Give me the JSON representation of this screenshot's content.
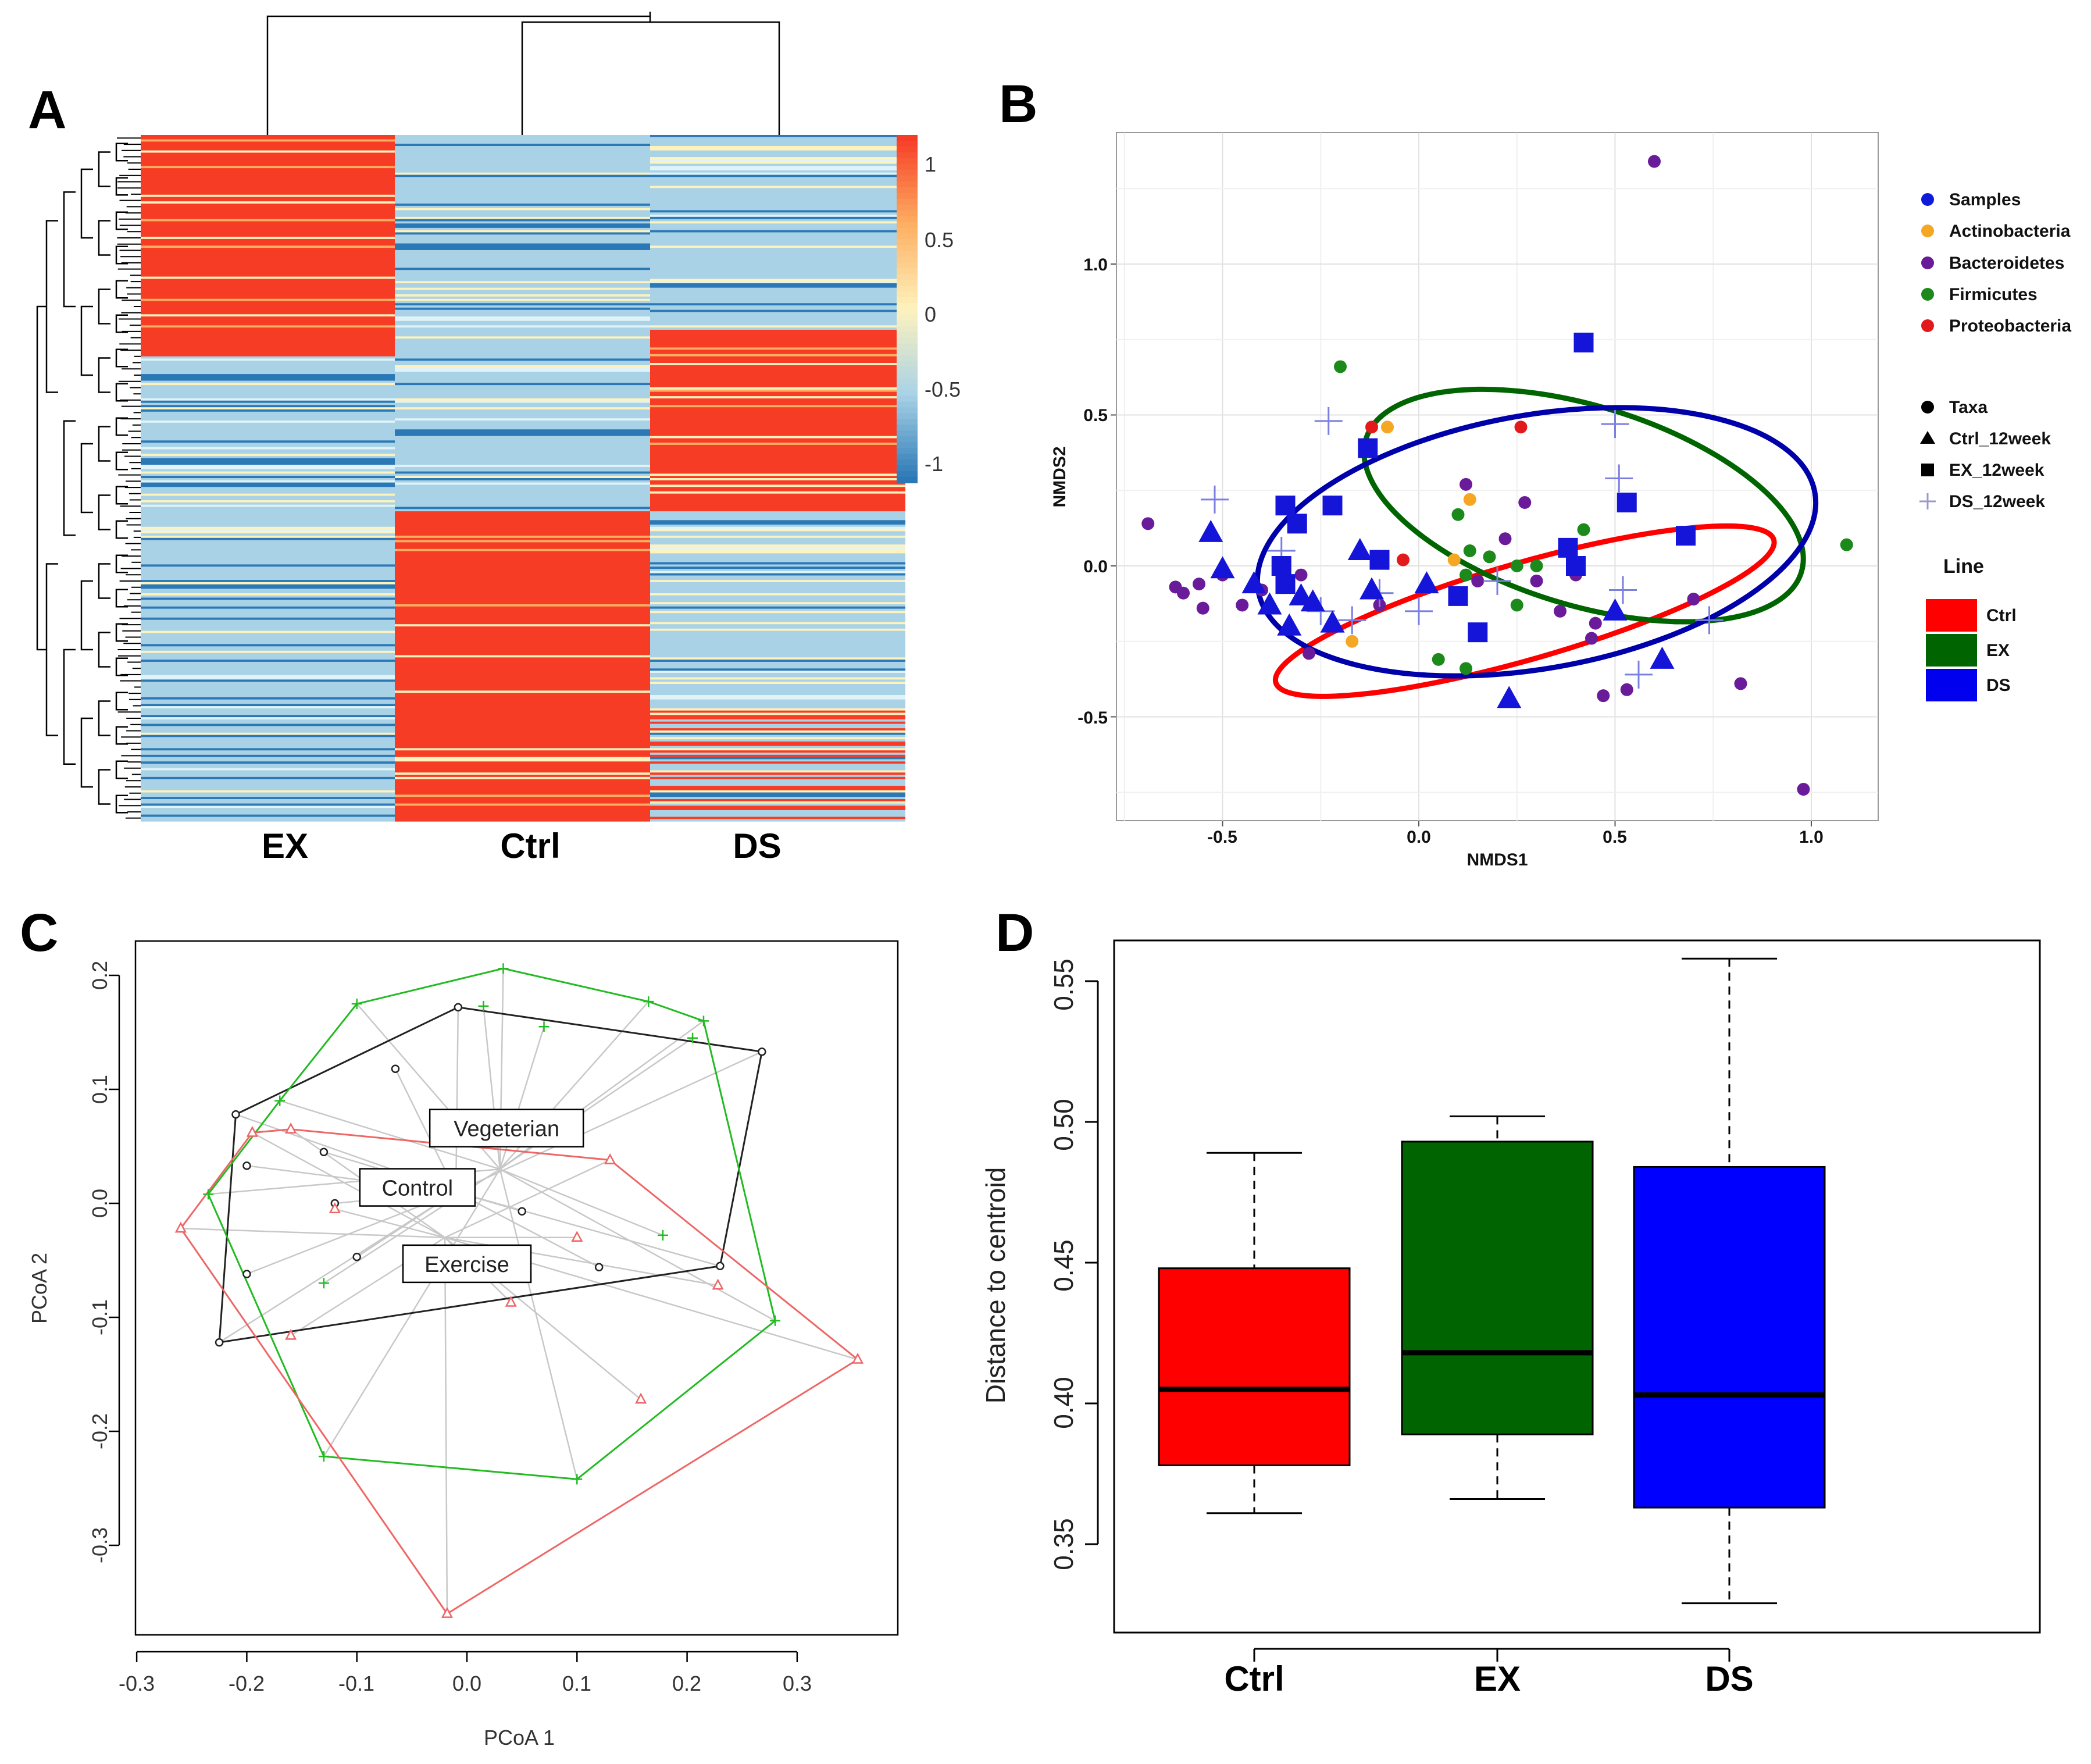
{
  "panel_labels": [
    "A",
    "B",
    "C",
    "D"
  ],
  "chart_data": [
    {
      "panel": "A",
      "type": "heatmap",
      "title": "",
      "columns": [
        "EX",
        "Ctrl",
        "DS"
      ],
      "colorbar_ticks": [
        "1",
        "0.5",
        "0",
        "-0.5",
        "-1"
      ],
      "colors": {
        "high": "#f73c26",
        "mid": "#fef2bd",
        "low": "#2a78b5",
        "light": "#a9d2e6"
      },
      "blocks": [
        {
          "rows": 88,
          "pattern": [
            "high",
            "light",
            "light"
          ]
        },
        {
          "rows": 12,
          "pattern": [
            "high",
            "light",
            "high"
          ]
        },
        {
          "rows": 70,
          "pattern": [
            "light",
            "light",
            "high"
          ]
        },
        {
          "rows": 90,
          "pattern": [
            "light",
            "high",
            "light"
          ]
        },
        {
          "rows": 50,
          "pattern": [
            "light",
            "high",
            "mixed"
          ]
        }
      ]
    },
    {
      "panel": "B",
      "type": "scatter",
      "xlabel": "NMDS1",
      "ylabel": "NMDS2",
      "xlim": [
        -0.75,
        1.2
      ],
      "ylim": [
        -0.8,
        1.4
      ],
      "xticks": [
        "-0.5",
        "0.0",
        "0.5",
        "1.0"
      ],
      "yticks": [
        "-0.5",
        "0.0",
        "0.5",
        "1.0"
      ],
      "legend_color_title": "",
      "legend_color": [
        "Samples",
        "Actinobacteria",
        "Bacteroidetes",
        "Firmicutes",
        "Proteobacteria"
      ],
      "legend_colors": [
        "#0f1bd8",
        "#f5a623",
        "#6a1b9a",
        "#1b8a1b",
        "#e31a1c"
      ],
      "legend_shape": [
        "Taxa",
        "Ctrl_12week",
        "EX_12week",
        "DS_12week"
      ],
      "legend_line_title": "Line",
      "legend_line": [
        "Ctrl",
        "EX",
        "DS"
      ],
      "legend_line_colors": [
        "#ff0000",
        "#006400",
        "#0000ee"
      ],
      "ellipses": [
        {
          "group": "Ctrl",
          "cx": 0.27,
          "cy": -0.15,
          "rx": 0.66,
          "ry": 0.16,
          "angle_deg": -16
        },
        {
          "group": "EX",
          "cx": 0.42,
          "cy": 0.2,
          "rx": 0.58,
          "ry": 0.33,
          "angle_deg": 17
        },
        {
          "group": "DS",
          "cx": 0.3,
          "cy": 0.08,
          "rx": 0.72,
          "ry": 0.42,
          "angle_deg": -10
        }
      ],
      "taxa": {
        "Bacteroidetes": [
          [
            0.6,
            1.34
          ],
          [
            -0.69,
            0.14
          ],
          [
            -0.62,
            -0.07
          ],
          [
            -0.6,
            -0.09
          ],
          [
            -0.56,
            -0.06
          ],
          [
            -0.5,
            -0.03
          ],
          [
            -0.55,
            -0.14
          ],
          [
            -0.45,
            -0.13
          ],
          [
            -0.4,
            -0.08
          ],
          [
            -0.3,
            -0.03
          ],
          [
            -0.1,
            -0.13
          ],
          [
            0.12,
            0.27
          ],
          [
            0.22,
            0.09
          ],
          [
            0.27,
            0.21
          ],
          [
            0.15,
            -0.05
          ],
          [
            0.4,
            -0.03
          ],
          [
            0.36,
            -0.15
          ],
          [
            0.45,
            -0.19
          ],
          [
            0.44,
            -0.24
          ],
          [
            0.47,
            -0.43
          ],
          [
            0.53,
            -0.41
          ],
          [
            0.7,
            -0.11
          ],
          [
            0.82,
            -0.39
          ],
          [
            0.98,
            -0.74
          ],
          [
            -0.28,
            -0.29
          ],
          [
            0.3,
            -0.05
          ]
        ],
        "Firmicutes": [
          [
            -0.2,
            0.66
          ],
          [
            0.1,
            0.17
          ],
          [
            0.13,
            0.05
          ],
          [
            0.12,
            -0.03
          ],
          [
            0.18,
            0.03
          ],
          [
            0.25,
            -0.13
          ],
          [
            0.25,
            0.0
          ],
          [
            0.12,
            -0.34
          ],
          [
            0.05,
            -0.31
          ],
          [
            0.42,
            0.12
          ],
          [
            1.09,
            0.07
          ],
          [
            0.3,
            0.0
          ]
        ],
        "Actinobacteria": [
          [
            -0.08,
            0.46
          ],
          [
            0.13,
            0.22
          ],
          [
            0.09,
            0.02
          ],
          [
            -0.17,
            -0.25
          ]
        ],
        "Proteobacteria": [
          [
            -0.12,
            0.46
          ],
          [
            0.26,
            0.46
          ],
          [
            -0.04,
            0.02
          ]
        ]
      },
      "samples": {
        "Ctrl_12week": [
          [
            -0.53,
            0.11
          ],
          [
            -0.5,
            -0.01
          ],
          [
            -0.42,
            -0.06
          ],
          [
            -0.38,
            -0.13
          ],
          [
            -0.3,
            -0.1
          ],
          [
            -0.27,
            -0.12
          ],
          [
            -0.33,
            -0.2
          ],
          [
            -0.22,
            -0.19
          ],
          [
            -0.15,
            0.05
          ],
          [
            -0.12,
            -0.08
          ],
          [
            0.02,
            -0.06
          ],
          [
            0.23,
            -0.44
          ],
          [
            0.5,
            -0.15
          ],
          [
            0.62,
            -0.31
          ]
        ],
        "EX_12week": [
          [
            -0.34,
            0.2
          ],
          [
            -0.22,
            0.2
          ],
          [
            -0.13,
            0.39
          ],
          [
            -0.35,
            0.0
          ],
          [
            -0.34,
            -0.06
          ],
          [
            -0.31,
            0.14
          ],
          [
            -0.1,
            0.02
          ],
          [
            0.1,
            -0.1
          ],
          [
            0.15,
            -0.22
          ],
          [
            0.38,
            0.06
          ],
          [
            0.42,
            0.74
          ],
          [
            0.53,
            0.21
          ],
          [
            0.68,
            0.1
          ],
          [
            0.4,
            0.0
          ]
        ],
        "DS_12week": [
          [
            -0.52,
            0.22
          ],
          [
            -0.23,
            0.48
          ],
          [
            -0.25,
            -0.15
          ],
          [
            -0.17,
            -0.18
          ],
          [
            -0.1,
            -0.09
          ],
          [
            0.0,
            -0.15
          ],
          [
            0.2,
            -0.05
          ],
          [
            0.5,
            0.47
          ],
          [
            0.51,
            0.29
          ],
          [
            0.52,
            -0.08
          ],
          [
            0.56,
            -0.36
          ],
          [
            0.74,
            -0.18
          ],
          [
            -0.35,
            0.05
          ]
        ]
      }
    },
    {
      "panel": "C",
      "type": "scatter",
      "xlabel": "PCoA 1",
      "ylabel": "PCoA 2",
      "xlim": [
        -0.3,
        0.38
      ],
      "ylim": [
        -0.38,
        0.25
      ],
      "xticks": [
        "-0.3",
        "-0.2",
        "-0.1",
        "0.0",
        "0.1",
        "0.2",
        "0.3"
      ],
      "yticks": [
        "-0.3",
        "-0.2",
        "-0.1",
        "0.0",
        "0.1",
        "0.2"
      ],
      "group_labels": [
        {
          "text": "Vegeterian",
          "x": 0.036,
          "y": 0.066
        },
        {
          "text": "Control",
          "x": -0.045,
          "y": 0.014
        },
        {
          "text": "Exercise",
          "x": 0.0,
          "y": -0.053
        }
      ],
      "groups": [
        {
          "name": "Control",
          "color": "#222222",
          "marker": "circle",
          "centroid": [
            -0.01,
            0.01
          ],
          "points": [
            [
              -0.21,
              0.078
            ],
            [
              -0.2,
              0.033
            ],
            [
              -0.13,
              0.045
            ],
            [
              -0.12,
              0.0
            ],
            [
              -0.1,
              -0.047
            ],
            [
              -0.2,
              -0.062
            ],
            [
              -0.225,
              -0.122
            ],
            [
              -0.065,
              0.118
            ],
            [
              -0.008,
              0.172
            ],
            [
              0.05,
              -0.007
            ],
            [
              0.12,
              -0.056
            ],
            [
              0.23,
              -0.055
            ],
            [
              0.268,
              0.133
            ]
          ]
        },
        {
          "name": "Vegeterian",
          "color": "#22bb22",
          "marker": "plus",
          "centroid": [
            0.03,
            0.03
          ],
          "points": [
            [
              -0.235,
              0.008
            ],
            [
              -0.17,
              0.09
            ],
            [
              -0.1,
              0.175
            ],
            [
              0.015,
              0.173
            ],
            [
              0.033,
              0.206
            ],
            [
              0.07,
              0.155
            ],
            [
              0.165,
              0.177
            ],
            [
              0.215,
              0.16
            ],
            [
              0.205,
              0.145
            ],
            [
              0.178,
              -0.028
            ],
            [
              0.28,
              -0.103
            ],
            [
              0.1,
              -0.242
            ],
            [
              -0.13,
              -0.222
            ],
            [
              -0.13,
              -0.07
            ]
          ]
        },
        {
          "name": "Exercise",
          "color": "#ee6666",
          "marker": "triangle",
          "centroid": [
            -0.02,
            -0.03
          ],
          "points": [
            [
              -0.26,
              -0.022
            ],
            [
              -0.195,
              0.062
            ],
            [
              -0.16,
              0.065
            ],
            [
              -0.16,
              -0.116
            ],
            [
              -0.12,
              -0.005
            ],
            [
              0.13,
              0.038
            ],
            [
              0.1,
              -0.03
            ],
            [
              0.04,
              -0.087
            ],
            [
              0.228,
              -0.072
            ],
            [
              0.355,
              -0.137
            ],
            [
              0.158,
              -0.172
            ],
            [
              -0.018,
              -0.36
            ]
          ]
        }
      ]
    },
    {
      "panel": "D",
      "type": "box",
      "xlabel": "",
      "ylabel": "Distance to centroid",
      "ylim": [
        0.33,
        0.57
      ],
      "yticks": [
        "0.35",
        "0.40",
        "0.45",
        "0.50",
        "0.55"
      ],
      "categories": [
        "Ctrl",
        "EX",
        "DS"
      ],
      "colors": [
        "#ff0000",
        "#006400",
        "#0000ff"
      ],
      "boxes": [
        {
          "min": 0.361,
          "q1": 0.378,
          "median": 0.405,
          "q3": 0.448,
          "max": 0.489
        },
        {
          "min": 0.366,
          "q1": 0.389,
          "median": 0.418,
          "q3": 0.493,
          "max": 0.502
        },
        {
          "min": 0.329,
          "q1": 0.363,
          "median": 0.403,
          "q3": 0.484,
          "max": 0.558
        }
      ]
    }
  ]
}
